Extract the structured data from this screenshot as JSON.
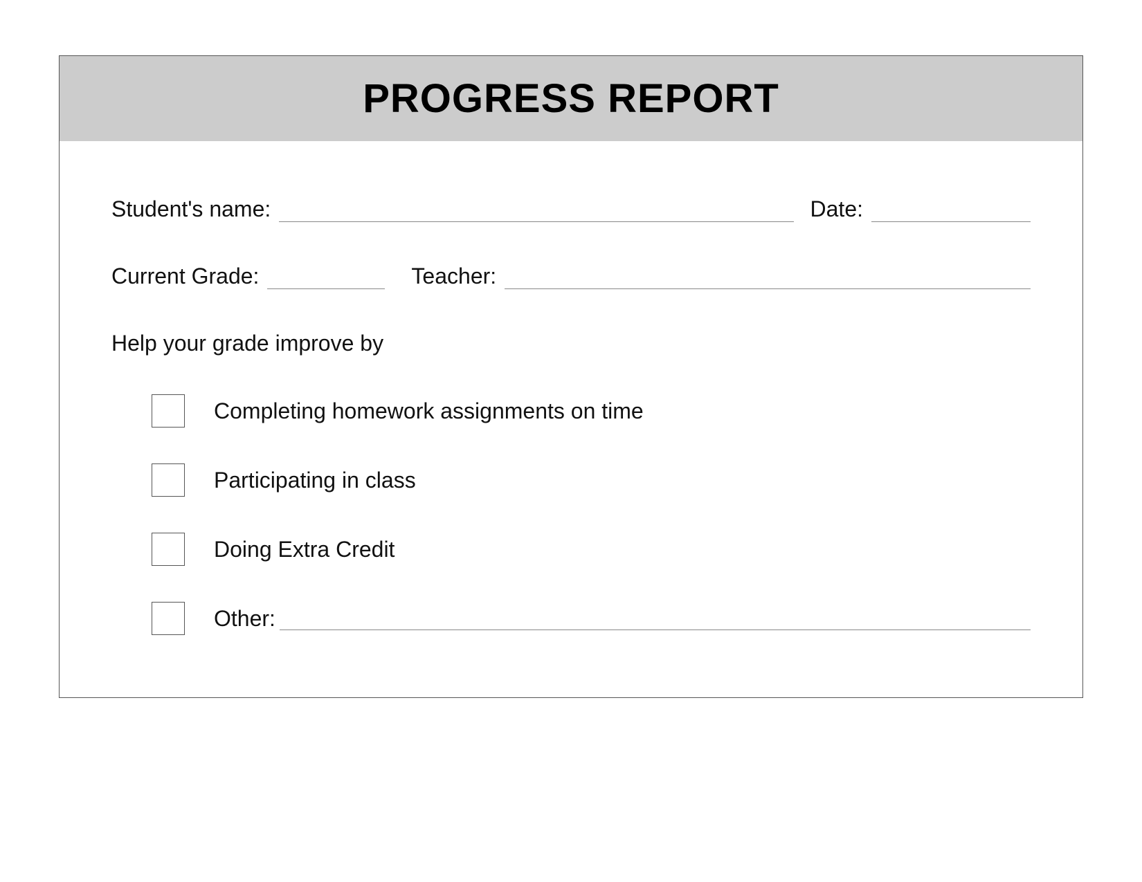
{
  "title": "PROGRESS REPORT",
  "fields": {
    "student_name_label": "Student's name:",
    "date_label": "Date:",
    "current_grade_label": "Current Grade:",
    "teacher_label": "Teacher:",
    "help_label": "Help your grade improve by"
  },
  "checkitems": {
    "item1": "Completing homework assignments on time",
    "item2": "Participating in class",
    "item3": "Doing Extra Credit",
    "item4": "Other:"
  },
  "styling": {
    "header_bg": "#cccccc",
    "title_fontsize": 58,
    "title_weight": 900,
    "body_fontsize": 32,
    "border_color": "#555555",
    "underline_color": "#888888",
    "text_color": "#111111",
    "checkbox_size": 48,
    "font_family": "Verdana"
  }
}
